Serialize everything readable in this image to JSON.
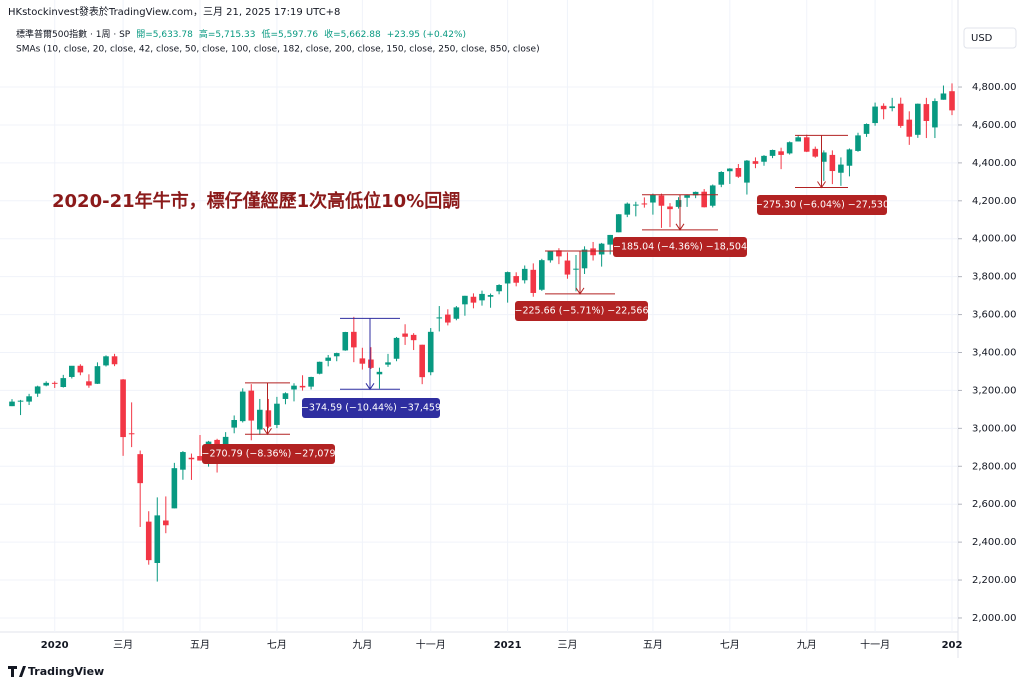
{
  "header": {
    "line1": "HKstockinvest發表於TradingView.com，三月 21, 2025 17:19 UTC+8",
    "symbol": "標準普爾500指數 · 1周 · SP",
    "quote": [
      "開=5,633.78",
      "高=5,715.33",
      "低=5,597.76",
      "收=5,662.88",
      "+23.95 (+0.42%)"
    ],
    "indicators": "SMAs (10, close, 20, close, 42, close, 50, close, 100, close, 182, close, 200, close, 150, close, 250, close, 850, close)",
    "currency": "USD"
  },
  "footer": {
    "brand": "TradingView"
  },
  "chart_data": {
    "type": "candlestick",
    "annotation_text": "2020-21年牛市，標仔僅經歷1次高低位10%回調",
    "up_color": "#089981",
    "down_color": "#f23645",
    "grid": true,
    "ylim": [
      1926,
      5259
    ],
    "yticks": [
      {
        "value": 2000,
        "label": "2,000.00"
      },
      {
        "value": 2200,
        "label": "2,200.00"
      },
      {
        "value": 2400,
        "label": "2,400.00"
      },
      {
        "value": 2600,
        "label": "2,600.00"
      },
      {
        "value": 2800,
        "label": "2,800.00"
      },
      {
        "value": 3000,
        "label": "3,000.00"
      },
      {
        "value": 3200,
        "label": "3,200.00"
      },
      {
        "value": 3400,
        "label": "3,400.00"
      },
      {
        "value": 3600,
        "label": "3,600.00"
      },
      {
        "value": 3800,
        "label": "3,800.00"
      },
      {
        "value": 4000,
        "label": "4,000.00"
      },
      {
        "value": 4200,
        "label": "4,200.00"
      },
      {
        "value": 4400,
        "label": "4,400.00"
      },
      {
        "value": 4600,
        "label": "4,600.00"
      },
      {
        "value": 4800,
        "label": "4,800.00"
      }
    ],
    "categories": [
      null,
      null,
      null,
      null,
      null,
      "2020",
      null,
      null,
      null,
      null,
      null,
      null,
      null,
      "三月",
      null,
      null,
      null,
      null,
      null,
      null,
      null,
      null,
      "五月",
      null,
      null,
      null,
      null,
      null,
      null,
      null,
      null,
      "七月",
      null,
      null,
      null,
      null,
      null,
      null,
      null,
      null,
      null,
      "九月",
      null,
      null,
      null,
      null,
      null,
      null,
      null,
      "十一月",
      null,
      null,
      null,
      null,
      null,
      null,
      null,
      null,
      "2021",
      null,
      null,
      null,
      null,
      null,
      null,
      "三月",
      null,
      null,
      null,
      null,
      null,
      null,
      null,
      null,
      null,
      "五月",
      null,
      null,
      null,
      null,
      null,
      null,
      null,
      null,
      "七月",
      null,
      null,
      null,
      null,
      null,
      null,
      null,
      null,
      "九月",
      null,
      null,
      null,
      null,
      null,
      null,
      null,
      "十一月",
      null,
      null,
      null,
      null,
      null,
      null,
      null,
      null,
      "202"
    ],
    "ohlc": [
      [
        3117,
        3154,
        3117,
        3141
      ],
      [
        3143,
        3150,
        3070,
        3146
      ],
      [
        3141,
        3182,
        3123,
        3169
      ],
      [
        3183,
        3225,
        3166,
        3221
      ],
      [
        3226,
        3248,
        3222,
        3240
      ],
      [
        3240,
        3248,
        3213,
        3235
      ],
      [
        3218,
        3282,
        3215,
        3265
      ],
      [
        3271,
        3329,
        3263,
        3330
      ],
      [
        3330,
        3338,
        3280,
        3295
      ],
      [
        3248,
        3285,
        3214,
        3226
      ],
      [
        3235,
        3348,
        3234,
        3328
      ],
      [
        3332,
        3385,
        3326,
        3380
      ],
      [
        3380,
        3393,
        3328,
        3338
      ],
      [
        3258,
        3260,
        2855,
        2954
      ],
      [
        2974,
        3137,
        2901,
        2972
      ],
      [
        2864,
        2883,
        2480,
        2711
      ],
      [
        2508,
        2563,
        2281,
        2305
      ],
      [
        2290,
        2636,
        2192,
        2541
      ],
      [
        2514,
        2641,
        2447,
        2489
      ],
      [
        2578,
        2818,
        2578,
        2790
      ],
      [
        2782,
        2880,
        2729,
        2875
      ],
      [
        2845,
        2867,
        2728,
        2837
      ],
      [
        2854,
        2965,
        2830,
        2830
      ],
      [
        2815,
        2934,
        2798,
        2930
      ],
      [
        2939,
        2945,
        2767,
        2864
      ],
      [
        2913,
        2980,
        2886,
        2955
      ],
      [
        3004,
        3068,
        2974,
        3044
      ],
      [
        3038,
        3211,
        3031,
        3194
      ],
      [
        3199,
        3233,
        2937,
        3041
      ],
      [
        2994,
        3155,
        2966,
        3098
      ],
      [
        3095,
        3155,
        3001,
        3009
      ],
      [
        3018,
        3166,
        3001,
        3130
      ],
      [
        3155,
        3190,
        3127,
        3185
      ],
      [
        3205,
        3238,
        3142,
        3225
      ],
      [
        3224,
        3280,
        3199,
        3216
      ],
      [
        3220,
        3272,
        3205,
        3271
      ],
      [
        3288,
        3352,
        3285,
        3351
      ],
      [
        3356,
        3387,
        3327,
        3373
      ],
      [
        3380,
        3399,
        3354,
        3397
      ],
      [
        3411,
        3509,
        3409,
        3508
      ],
      [
        3509,
        3588,
        3349,
        3427
      ],
      [
        3369,
        3425,
        3310,
        3341
      ],
      [
        3363,
        3428,
        3313,
        3319
      ],
      [
        3285,
        3320,
        3209,
        3298
      ],
      [
        3336,
        3393,
        3324,
        3348
      ],
      [
        3367,
        3482,
        3354,
        3477
      ],
      [
        3500,
        3549,
        3440,
        3483
      ],
      [
        3493,
        3502,
        3413,
        3465
      ],
      [
        3441,
        3441,
        3233,
        3270
      ],
      [
        3296,
        3529,
        3280,
        3509
      ],
      [
        3584,
        3645,
        3511,
        3585
      ],
      [
        3600,
        3628,
        3543,
        3558
      ],
      [
        3578,
        3645,
        3570,
        3638
      ],
      [
        3654,
        3699,
        3594,
        3699
      ],
      [
        3694,
        3712,
        3633,
        3663
      ],
      [
        3675,
        3726,
        3647,
        3709
      ],
      [
        3694,
        3711,
        3636,
        3703
      ],
      [
        3723,
        3760,
        3707,
        3756
      ],
      [
        3764,
        3827,
        3663,
        3824
      ],
      [
        3803,
        3823,
        3749,
        3768
      ],
      [
        3781,
        3859,
        3764,
        3841
      ],
      [
        3836,
        3870,
        3694,
        3714
      ],
      [
        3731,
        3894,
        3725,
        3887
      ],
      [
        3886,
        3934,
        3874,
        3934
      ],
      [
        3939,
        3950,
        3866,
        3907
      ],
      [
        3885,
        3928,
        3789,
        3811
      ],
      [
        3842,
        3914,
        3723,
        3842
      ],
      [
        3844,
        3960,
        3814,
        3943
      ],
      [
        3949,
        3983,
        3885,
        3913
      ],
      [
        3917,
        3978,
        3853,
        3974
      ],
      [
        3969,
        4020,
        3917,
        4020
      ],
      [
        4034,
        4130,
        4034,
        4129
      ],
      [
        4127,
        4191,
        4114,
        4185
      ],
      [
        4179,
        4195,
        4118,
        4180
      ],
      [
        4186,
        4218,
        4164,
        4181
      ],
      [
        4191,
        4238,
        4127,
        4233
      ],
      [
        4228,
        4238,
        4057,
        4174
      ],
      [
        4170,
        4188,
        4061,
        4156
      ],
      [
        4168,
        4219,
        4159,
        4204
      ],
      [
        4216,
        4234,
        4168,
        4230
      ],
      [
        4229,
        4249,
        4214,
        4247
      ],
      [
        4248,
        4262,
        4165,
        4166
      ],
      [
        4174,
        4286,
        4165,
        4281
      ],
      [
        4285,
        4356,
        4272,
        4352
      ],
      [
        4356,
        4372,
        4289,
        4370
      ],
      [
        4373,
        4394,
        4321,
        4327
      ],
      [
        4296,
        4415,
        4233,
        4412
      ],
      [
        4409,
        4429,
        4372,
        4395
      ],
      [
        4406,
        4441,
        4385,
        4437
      ],
      [
        4437,
        4470,
        4425,
        4468
      ],
      [
        4461,
        4480,
        4367,
        4442
      ],
      [
        4450,
        4513,
        4444,
        4509
      ],
      [
        4513,
        4546,
        4513,
        4535
      ],
      [
        4535,
        4549,
        4457,
        4459
      ],
      [
        4474,
        4486,
        4427,
        4433
      ],
      [
        4406,
        4466,
        4305,
        4455
      ],
      [
        4442,
        4466,
        4288,
        4357
      ],
      [
        4348,
        4429,
        4279,
        4391
      ],
      [
        4385,
        4476,
        4329,
        4471
      ],
      [
        4463,
        4559,
        4459,
        4545
      ],
      [
        4553,
        4608,
        4537,
        4605
      ],
      [
        4610,
        4718,
        4596,
        4697
      ],
      [
        4701,
        4714,
        4630,
        4683
      ],
      [
        4689,
        4743,
        4672,
        4698
      ],
      [
        4712,
        4744,
        4585,
        4595
      ],
      [
        4628,
        4672,
        4495,
        4538
      ],
      [
        4548,
        4713,
        4532,
        4712
      ],
      [
        4710,
        4743,
        4531,
        4621
      ],
      [
        4587,
        4740,
        4531,
        4726
      ],
      [
        4733,
        4808,
        4733,
        4766
      ],
      [
        4778,
        4819,
        4652,
        4677
      ]
    ],
    "measures": [
      {
        "label": "−270.79 (−8.36%) −27,079",
        "top": 3240,
        "bottom": 2969,
        "color": "#b22222"
      },
      {
        "label": "−374.59 (−10.44%) −37,459",
        "top": 3580,
        "bottom": 3206,
        "color": "#2e2ea0"
      },
      {
        "label": "−225.66 (−5.71%) −22,566",
        "top": 3935,
        "bottom": 3709,
        "color": "#b22222"
      },
      {
        "label": "−185.04 (−4.36%) −18,504",
        "top": 4232,
        "bottom": 4047,
        "color": "#b22222"
      },
      {
        "label": "−275.30 (−6.04%) −27,530",
        "top": 4545,
        "bottom": 4270,
        "color": "#b22222"
      }
    ]
  }
}
